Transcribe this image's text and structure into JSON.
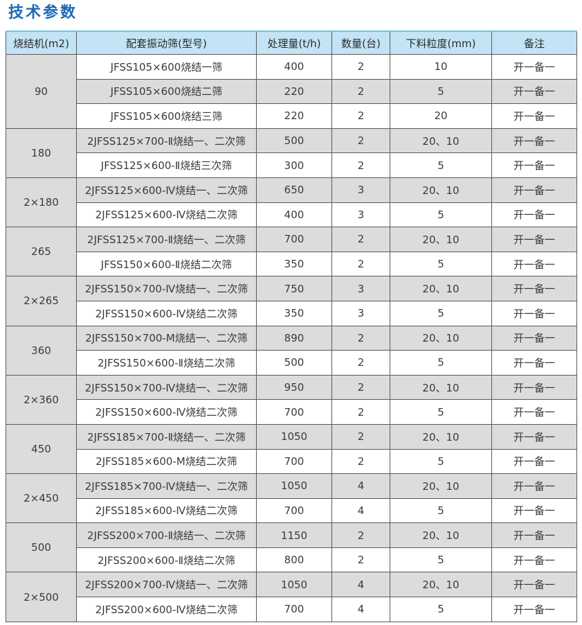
{
  "page": {
    "title": "技术参数"
  },
  "table": {
    "headers": [
      "烧结机(m2)",
      "配套振动筛(型号)",
      "处理量(t/h)",
      "数量(台)",
      "下料粒度(mm)",
      "备注"
    ],
    "groups": [
      {
        "machine": "90",
        "rows": [
          {
            "model": "JFSS105×600烧结一筛",
            "capacity": "400",
            "quantity": "2",
            "particle_size": "10",
            "note": "开一备一"
          },
          {
            "model": "JFSS105×600烧结二筛",
            "capacity": "220",
            "quantity": "2",
            "particle_size": "5",
            "note": "开一备一"
          },
          {
            "model": "JFSS105×600烧结三筛",
            "capacity": "220",
            "quantity": "2",
            "particle_size": "20",
            "note": "开一备一"
          }
        ]
      },
      {
        "machine": "180",
        "rows": [
          {
            "model": "2JFSS125×700-Ⅱ烧结一、二次筛",
            "capacity": "500",
            "quantity": "2",
            "particle_size": "20、10",
            "note": "开一备一"
          },
          {
            "model": "JFSS125×600-Ⅱ烧结三次筛",
            "capacity": "300",
            "quantity": "2",
            "particle_size": "5",
            "note": "开一备一"
          }
        ]
      },
      {
        "machine": "2×180",
        "rows": [
          {
            "model": "2JFSS125×600-Ⅳ烧结一、二次筛",
            "capacity": "650",
            "quantity": "3",
            "particle_size": "20、10",
            "note": "开一备一"
          },
          {
            "model": "2JFSS125×600-Ⅳ烧结二次筛",
            "capacity": "400",
            "quantity": "3",
            "particle_size": "5",
            "note": "开一备一"
          }
        ]
      },
      {
        "machine": "265",
        "rows": [
          {
            "model": "2JFSS125×700-Ⅱ烧结一、二次筛",
            "capacity": "700",
            "quantity": "2",
            "particle_size": "20、10",
            "note": "开一备一"
          },
          {
            "model": "JFSS150×600-Ⅱ烧结二次筛",
            "capacity": "350",
            "quantity": "2",
            "particle_size": "5",
            "note": "开一备一"
          }
        ]
      },
      {
        "machine": "2×265",
        "rows": [
          {
            "model": "2JFSS150×700-Ⅳ烧结一、二次筛",
            "capacity": "750",
            "quantity": "3",
            "particle_size": "20、10",
            "note": "开一备一"
          },
          {
            "model": "2JFSS150×600-Ⅳ烧结二次筛",
            "capacity": "350",
            "quantity": "3",
            "particle_size": "5",
            "note": "开一备一"
          }
        ]
      },
      {
        "machine": "360",
        "rows": [
          {
            "model": "2JFSS150×700-M烧结一、二次筛",
            "capacity": "890",
            "quantity": "2",
            "particle_size": "20、10",
            "note": "开一备一"
          },
          {
            "model": "2JFSS150×600-Ⅱ烧结二次筛",
            "capacity": "500",
            "quantity": "2",
            "particle_size": "5",
            "note": "开一备一"
          }
        ]
      },
      {
        "machine": "2×360",
        "rows": [
          {
            "model": "2JFSS150×700-Ⅳ烧结一、二次筛",
            "capacity": "950",
            "quantity": "2",
            "particle_size": "20、10",
            "note": "开一备一"
          },
          {
            "model": "2JFSS150×600-Ⅳ烧结二次筛",
            "capacity": "700",
            "quantity": "2",
            "particle_size": "5",
            "note": "开一备一"
          }
        ]
      },
      {
        "machine": "450",
        "rows": [
          {
            "model": "2JFSS185×700-Ⅱ烧结一、二次筛",
            "capacity": "1050",
            "quantity": "2",
            "particle_size": "20、10",
            "note": "开一备一"
          },
          {
            "model": "2JFSS185×600-M烧结二次筛",
            "capacity": "700",
            "quantity": "2",
            "particle_size": "5",
            "note": "开一备一"
          }
        ]
      },
      {
        "machine": "2×450",
        "rows": [
          {
            "model": "2JFSS185×700-Ⅳ烧结一、二次筛",
            "capacity": "1050",
            "quantity": "4",
            "particle_size": "20、10",
            "note": "开一备一"
          },
          {
            "model": "2JFSS185×600-Ⅳ烧结二次筛",
            "capacity": "700",
            "quantity": "4",
            "particle_size": "5",
            "note": "开一备一"
          }
        ]
      },
      {
        "machine": "500",
        "rows": [
          {
            "model": "2JFSS200×700-Ⅱ烧结一、二次筛",
            "capacity": "1150",
            "quantity": "2",
            "particle_size": "20、10",
            "note": "开一备一"
          },
          {
            "model": "2JFSS200×600-Ⅱ烧结二次筛",
            "capacity": "800",
            "quantity": "2",
            "particle_size": "5",
            "note": "开一备一"
          }
        ]
      },
      {
        "machine": "2×500",
        "rows": [
          {
            "model": "2JFSS200×700-Ⅳ烧结一、二次筛",
            "capacity": "1050",
            "quantity": "4",
            "particle_size": "20、10",
            "note": "开一备一"
          },
          {
            "model": "2JFSS200×600-Ⅳ烧结二次筛",
            "capacity": "700",
            "quantity": "4",
            "particle_size": "5",
            "note": "开一备一"
          }
        ]
      }
    ]
  },
  "colors": {
    "title_blue": "#1a6ab5",
    "header_bg": "#c2e4f4",
    "header_top_line": "#66c5ec",
    "row_gray": "#dcdcdc",
    "row_white": "#ffffff",
    "border": "#58595b",
    "text": "#3a3a3a"
  }
}
